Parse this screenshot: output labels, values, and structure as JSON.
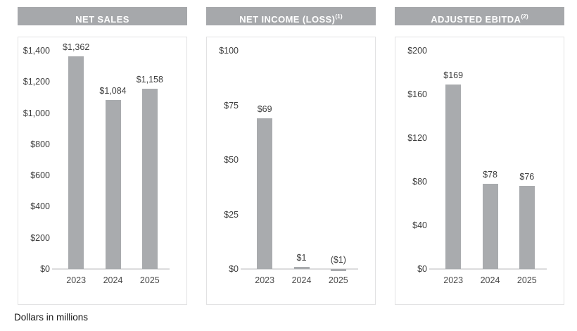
{
  "footer": {
    "text": "Dollars in millions"
  },
  "colors": {
    "header_bg": "#a6a8ab",
    "header_text": "#ffffff",
    "bar": "#a9abae",
    "panel_border": "#e2e2e3",
    "baseline": "#dcdcdd",
    "axis_text": "#3d3d3d"
  },
  "chart_data": [
    {
      "type": "bar",
      "title": "NET SALES",
      "title_superscript": "",
      "categories": [
        "2023",
        "2024",
        "2025"
      ],
      "values": [
        1362,
        1084,
        1158
      ],
      "value_labels": [
        "$1,362",
        "$1,084",
        "$1,158"
      ],
      "ylim": [
        0,
        1400
      ],
      "ytick_step": 200,
      "ytick_labels": [
        "$0",
        "$200",
        "$400",
        "$600",
        "$800",
        "$1,000",
        "$1,200",
        "$1,400"
      ],
      "ylabel": "",
      "xlabel": "",
      "grid": false,
      "legend": "none",
      "units": "Dollars in millions"
    },
    {
      "type": "bar",
      "title": "NET INCOME (LOSS)",
      "title_superscript": "(1)",
      "categories": [
        "2023",
        "2024",
        "2025"
      ],
      "values": [
        69,
        1,
        -1
      ],
      "value_labels": [
        "$69",
        "$1",
        "($1)"
      ],
      "ylim": [
        0,
        100
      ],
      "ytick_step": 25,
      "ytick_labels": [
        "$0",
        "$25",
        "$50",
        "$75",
        "$100"
      ],
      "ylabel": "",
      "xlabel": "",
      "grid": false,
      "legend": "none",
      "units": "Dollars in millions"
    },
    {
      "type": "bar",
      "title": "ADJUSTED EBITDA",
      "title_superscript": "(2)",
      "categories": [
        "2023",
        "2024",
        "2025"
      ],
      "values": [
        169,
        78,
        76
      ],
      "value_labels": [
        "$169",
        "$78",
        "$76"
      ],
      "ylim": [
        0,
        200
      ],
      "ytick_step": 40,
      "ytick_labels": [
        "$0",
        "$40",
        "$80",
        "$120",
        "$160",
        "$200"
      ],
      "ylabel": "",
      "xlabel": "",
      "grid": false,
      "legend": "none",
      "units": "Dollars in millions"
    }
  ]
}
